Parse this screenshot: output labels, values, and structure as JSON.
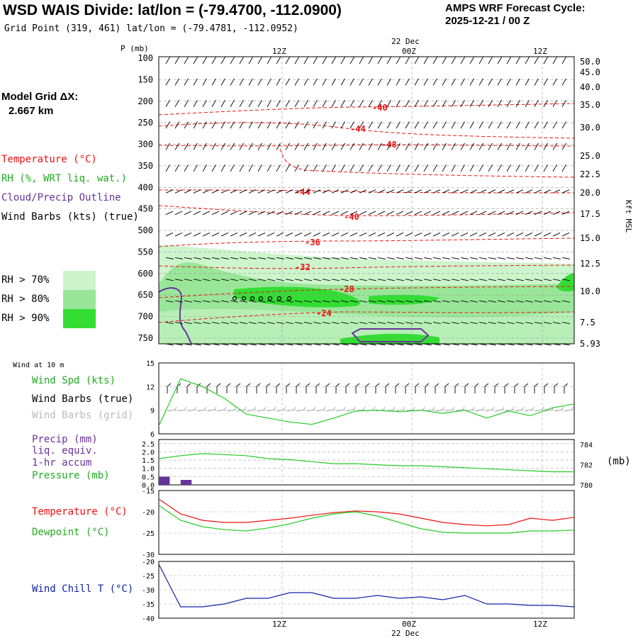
{
  "header": {
    "title": "WSD WAIS Divide:  lat/lon = (-79.4700, -112.0900)",
    "grid_point": "Grid Point (319, 461) lat/lon = (-79.4781, -112.0952)",
    "cycle_line1": "AMPS WRF Forecast Cycle:",
    "cycle_line2": "2025-12-21 / 00  Z"
  },
  "model": {
    "label": "Model Grid ΔX:",
    "value": "2.667 km"
  },
  "colors": {
    "temperature": "#ee1111",
    "dewpoint": "#22cc22",
    "rh": "#22cc22",
    "cloud": "#663399",
    "windchill": "#1122aa",
    "grid_barb": "#aaaaaa",
    "rh70": "#ccf5cc",
    "rh80": "#99e699",
    "rh90": "#33dd33"
  },
  "upper": {
    "p_axis_label": "P (mb)",
    "right_axis_label": "Kft MSL",
    "legend": {
      "temperature": "Temperature (°C)",
      "rh": "RH (%, WRT liq. wat.)",
      "cloud": "Cloud/Precip Outline",
      "barbs": "Wind Barbs (kts) (true)"
    },
    "rh_legend": [
      "RH > 70%",
      "RH > 80%",
      "RH > 90%"
    ]
  },
  "time_axis": {
    "top_labels": [
      "12Z",
      "00Z",
      "12Z"
    ],
    "date_label": "22 Dec"
  },
  "panels": {
    "wind": {
      "caption": "Wind at 10 m",
      "spd_label": "Wind Spd (kts)",
      "barbs_true_label": "Wind Barbs (true)",
      "barbs_grid_label": "Wind Barbs (grid)"
    },
    "precip": {
      "label1": "Precip (mm)",
      "label2": "liq. equiv.",
      "label3": "1-hr accum",
      "pressure_label": "Pressure (mb)",
      "right_unit": "(mb)"
    },
    "temp": {
      "t_label": "Temperature (°C)",
      "td_label": "Dewpoint (°C)"
    },
    "chill": {
      "label": "Wind Chill T (°C)"
    }
  },
  "chart_data": [
    {
      "type": "heatmap",
      "xlabel": "",
      "ylabel": "P (mb)",
      "y_ticks": [
        100,
        150,
        200,
        250,
        300,
        350,
        400,
        450,
        500,
        550,
        600,
        650,
        700,
        750
      ],
      "right_ticks": [
        "50.0",
        "45.0",
        "40.0",
        "35.0",
        "30.0",
        "25.0",
        "22.5",
        "20.0",
        "17.5",
        "15.0",
        "12.5",
        "10.0",
        "7.5",
        "5.93"
      ],
      "temperature_contour_labels": [
        "-40",
        "-44",
        "-48",
        "-44",
        "-40",
        "-36",
        "-32",
        "-28",
        "-24"
      ]
    },
    {
      "type": "line",
      "name": "Wind Spd (kts)",
      "y_ticks": [
        6,
        9,
        12,
        15
      ],
      "ylim": [
        6,
        15
      ],
      "x": [
        0,
        2,
        4,
        6,
        8,
        10,
        12,
        14,
        16,
        18,
        20,
        22,
        24,
        26,
        28,
        30,
        32,
        34,
        36,
        38
      ],
      "values": [
        7.0,
        13.0,
        12.0,
        10.5,
        8.5,
        8.0,
        7.5,
        7.2,
        8.0,
        8.9,
        9.0,
        8.8,
        9.0,
        8.6,
        9.0,
        8.0,
        8.9,
        8.3,
        9.3,
        9.8
      ]
    },
    {
      "type": "line",
      "name": "Pressure (mb)",
      "left_ticks": [
        "0.0",
        "0.5",
        "1.0",
        "1.5",
        "2.0",
        "2.5"
      ],
      "right_ticks": [
        "780",
        "782",
        "784"
      ],
      "ylim": [
        780,
        784.5
      ],
      "x": [
        0,
        2,
        4,
        6,
        8,
        10,
        12,
        14,
        16,
        18,
        20,
        22,
        24,
        26,
        28,
        30,
        32,
        34,
        36,
        38
      ],
      "values": [
        782.6,
        782.9,
        783.1,
        783.0,
        782.9,
        782.6,
        782.5,
        782.3,
        782.1,
        782.1,
        782.0,
        781.9,
        781.9,
        781.8,
        781.7,
        781.6,
        781.5,
        781.4,
        781.3,
        781.3
      ],
      "precip_mm": [
        0.5,
        0.3,
        0,
        0,
        0,
        0,
        0,
        0,
        0,
        0,
        0,
        0,
        0,
        0,
        0,
        0,
        0,
        0,
        0,
        0
      ]
    },
    {
      "type": "line",
      "y_ticks": [
        -30,
        -25,
        -20,
        -15
      ],
      "ylim": [
        -30,
        -15
      ],
      "x": [
        0,
        2,
        4,
        6,
        8,
        10,
        12,
        14,
        16,
        18,
        20,
        22,
        24,
        26,
        28,
        30,
        32,
        34,
        36,
        38
      ],
      "series": [
        {
          "name": "Temperature (°C)",
          "values": [
            -17.0,
            -20.5,
            -22.0,
            -22.5,
            -22.5,
            -22.0,
            -21.5,
            -20.8,
            -20.2,
            -19.8,
            -20.0,
            -20.5,
            -21.5,
            -22.5,
            -23.0,
            -23.3,
            -23.0,
            -21.5,
            -22.0,
            -21.3
          ]
        },
        {
          "name": "Dewpoint (°C)",
          "values": [
            -18.5,
            -22.0,
            -23.5,
            -24.2,
            -24.5,
            -23.8,
            -22.8,
            -21.5,
            -20.5,
            -20.0,
            -21.0,
            -22.5,
            -24.0,
            -24.8,
            -25.0,
            -25.0,
            -25.0,
            -24.5,
            -24.5,
            -24.3
          ]
        }
      ]
    },
    {
      "type": "line",
      "name": "Wind Chill T (°C)",
      "y_ticks": [
        -40,
        -35,
        -30,
        -25,
        -20
      ],
      "ylim": [
        -40,
        -20
      ],
      "x": [
        0,
        2,
        4,
        6,
        8,
        10,
        12,
        14,
        16,
        18,
        20,
        22,
        24,
        26,
        28,
        30,
        32,
        34,
        36,
        38
      ],
      "values": [
        -21,
        -36,
        -36,
        -35,
        -33,
        -33,
        -31,
        -31,
        -33,
        -33,
        -32,
        -33,
        -32.5,
        -33.5,
        -32,
        -35,
        -35,
        -35.5,
        -35.5,
        -36
      ]
    }
  ]
}
